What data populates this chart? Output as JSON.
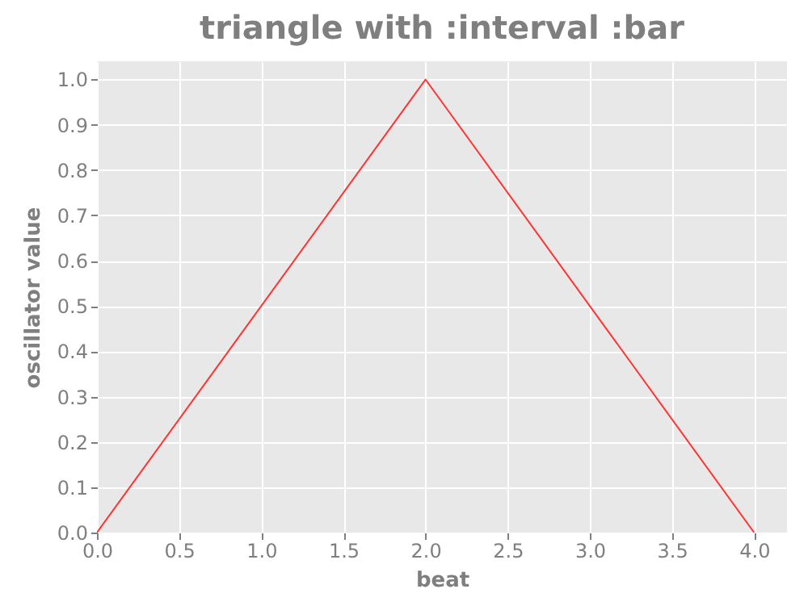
{
  "chart_data": {
    "type": "line",
    "title": "triangle with :interval :bar",
    "xlabel": "beat",
    "ylabel": "oscillator value",
    "x": [
      0,
      2,
      4
    ],
    "series": [
      {
        "color": "#ff3333",
        "values": [
          0,
          1,
          0
        ]
      }
    ],
    "xlim": [
      0,
      4.2
    ],
    "xticks": [
      {
        "value": 0,
        "label": "0.0"
      },
      {
        "value": 0.5,
        "label": "0.5"
      },
      {
        "value": 1,
        "label": "1.0"
      },
      {
        "value": 1.5,
        "label": "1.5"
      },
      {
        "value": 2,
        "label": "2.0"
      },
      {
        "value": 2.5,
        "label": "2.5"
      },
      {
        "value": 3,
        "label": "3.0"
      },
      {
        "value": 3.5,
        "label": "3.5"
      },
      {
        "value": 4,
        "label": "4.0"
      }
    ],
    "ylim": [
      0,
      1.04
    ],
    "yticks": [
      {
        "value": 0,
        "label": "0.0"
      },
      {
        "value": 0.1,
        "label": "0.1"
      },
      {
        "value": 0.2,
        "label": "0.2"
      },
      {
        "value": 0.3,
        "label": "0.3"
      },
      {
        "value": 0.4,
        "label": "0.4"
      },
      {
        "value": 0.5,
        "label": "0.5"
      },
      {
        "value": 0.6,
        "label": "0.6"
      },
      {
        "value": 0.7,
        "label": "0.7"
      },
      {
        "value": 0.8,
        "label": "0.8"
      },
      {
        "value": 0.9,
        "label": "0.9"
      },
      {
        "value": 1,
        "label": "1.0"
      }
    ],
    "grid": true,
    "marker": "none",
    "line_style": "solid"
  }
}
